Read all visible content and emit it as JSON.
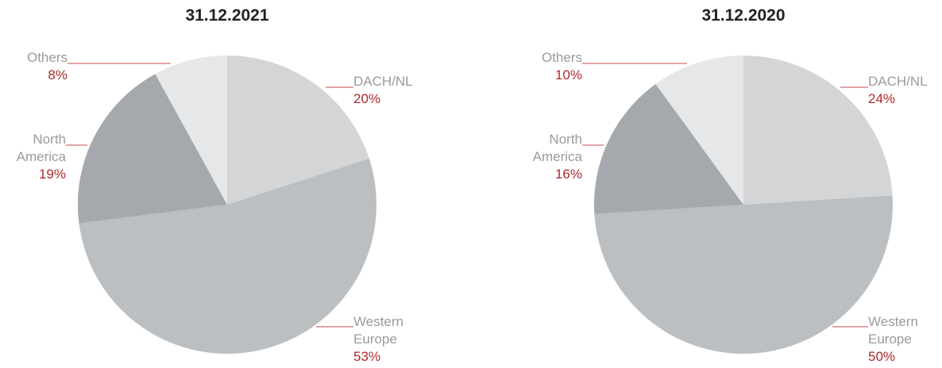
{
  "chart_data": [
    {
      "type": "pie",
      "title": "31.12.2021",
      "categories": [
        "DACH/NL",
        "Western Europe",
        "North America",
        "Others"
      ],
      "values": [
        20,
        53,
        19,
        8
      ],
      "value_labels": [
        "20%",
        "53%",
        "19%",
        "8%"
      ],
      "colors": [
        "#d4d5d7",
        "#bcbfc2",
        "#a5a8ac",
        "#e6e7e9"
      ]
    },
    {
      "type": "pie",
      "title": "31.12.2020",
      "categories": [
        "DACH/NL",
        "Western Europe",
        "North America",
        "Others"
      ],
      "values": [
        24,
        50,
        16,
        10
      ],
      "value_labels": [
        "24%",
        "50%",
        "16%",
        "10%"
      ],
      "colors": [
        "#d4d5d7",
        "#bcbfc2",
        "#a5a8ac",
        "#e6e7e9"
      ]
    }
  ]
}
